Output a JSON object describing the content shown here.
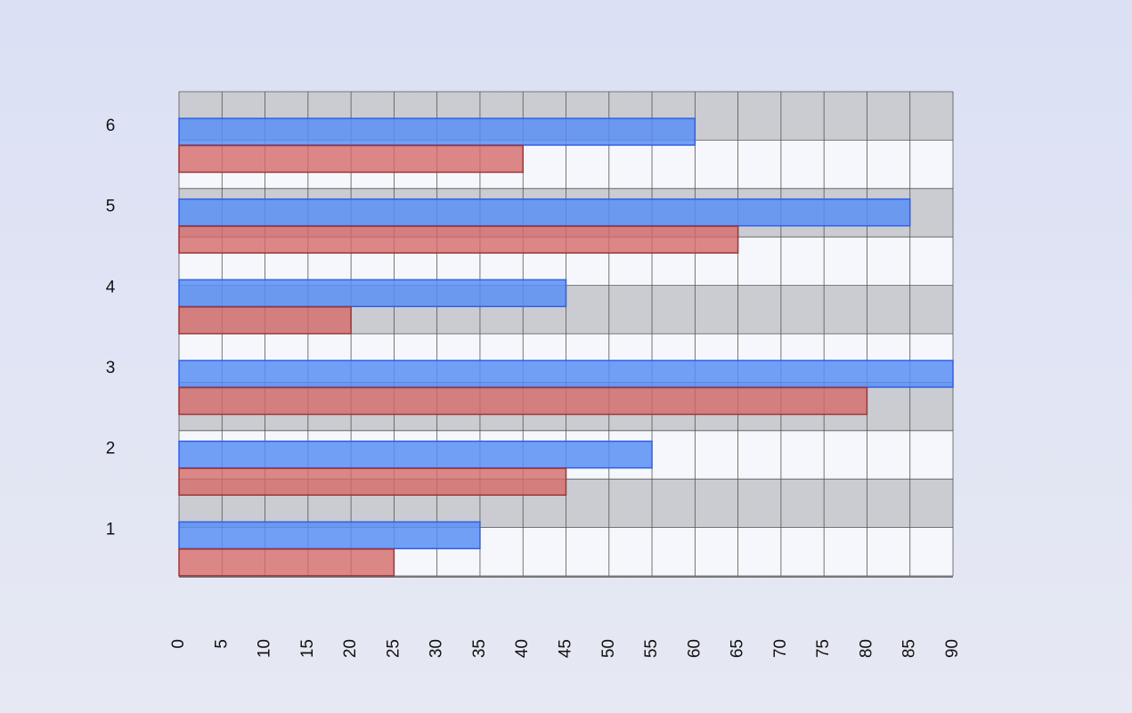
{
  "chart_data": {
    "type": "bar",
    "orientation": "horizontal",
    "categories": [
      "1",
      "2",
      "3",
      "4",
      "5",
      "6"
    ],
    "series": [
      {
        "color": "#5b8ff5",
        "values": [
          35,
          55,
          90,
          45,
          85,
          60
        ]
      },
      {
        "color": "#d46a6a",
        "values": [
          25,
          45,
          80,
          20,
          65,
          40
        ]
      }
    ],
    "xlim": [
      0,
      90
    ],
    "xticks": [
      0,
      5,
      10,
      15,
      20,
      25,
      30,
      35,
      40,
      45,
      50,
      55,
      60,
      65,
      70,
      75,
      80,
      85,
      90
    ],
    "grid": true
  }
}
